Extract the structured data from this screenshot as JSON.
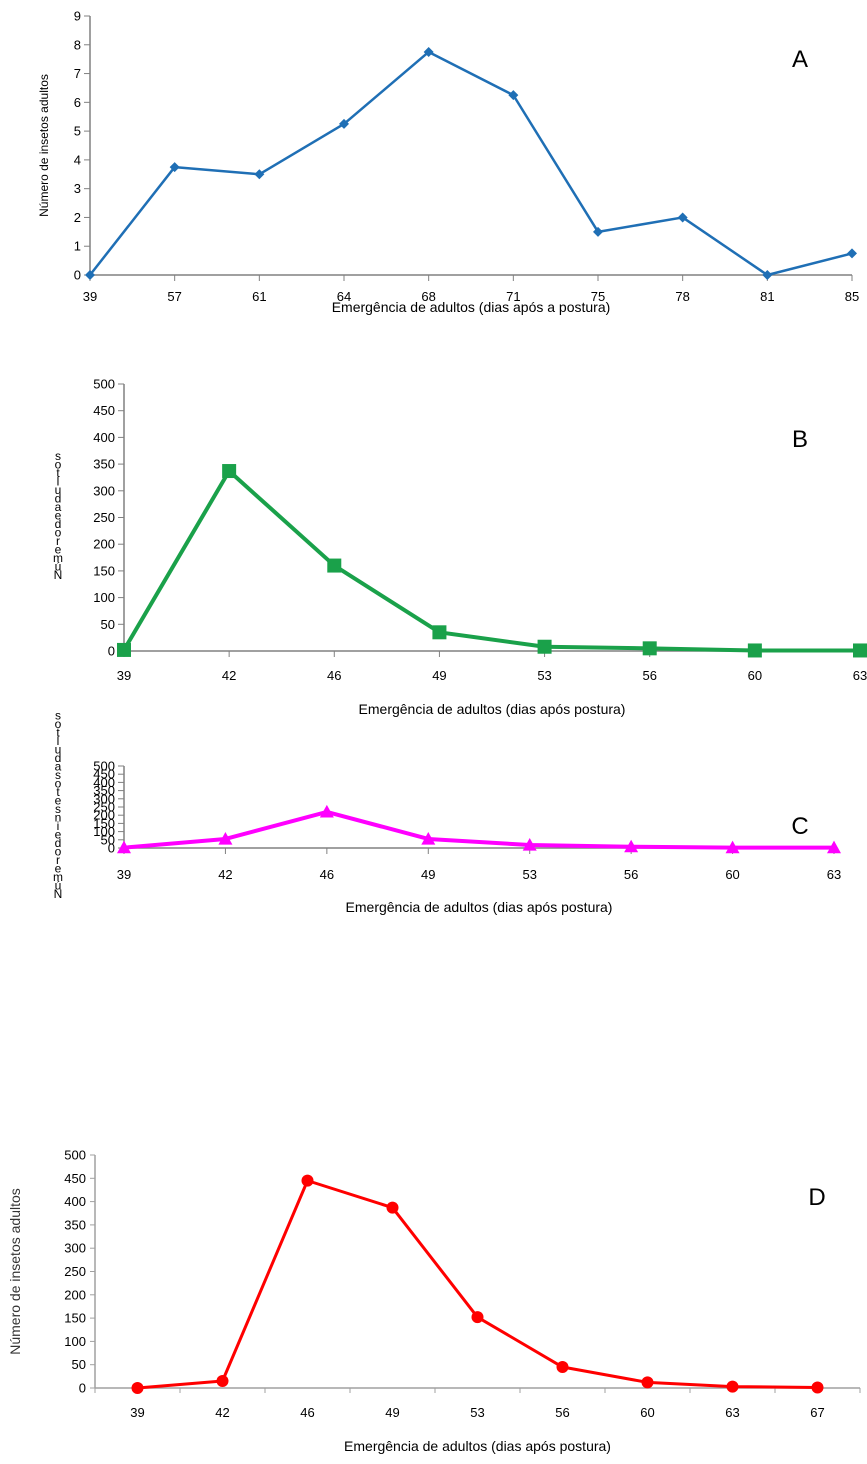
{
  "chart_data": [
    {
      "type": "line",
      "panel": "A",
      "x": [
        "39",
        "57",
        "61",
        "64",
        "68",
        "71",
        "75",
        "78",
        "81",
        "85"
      ],
      "series": [
        {
          "values": [
            0,
            3.75,
            3.5,
            5.25,
            7.75,
            6.25,
            1.5,
            2.0,
            0,
            0.75
          ],
          "color": "#1f6fb5",
          "marker": "diamond"
        }
      ],
      "xlabel": "Emergência de adultos (dias após a postura)",
      "ylabel": "Número de insetos adultos",
      "yticks": [
        "0",
        "1",
        "2",
        "3",
        "4",
        "5",
        "6",
        "7",
        "8",
        "9"
      ],
      "ylim": [
        0,
        9
      ],
      "grid": false
    },
    {
      "type": "line",
      "panel": "B",
      "x": [
        "39",
        "42",
        "46",
        "49",
        "53",
        "56",
        "60",
        "63"
      ],
      "series": [
        {
          "values": [
            2,
            337,
            160,
            35,
            8,
            5,
            1,
            1
          ],
          "color": "#1aa14a",
          "marker": "square"
        }
      ],
      "xlabel": "Emergência de adultos (dias após postura)",
      "ylabel": "Número de adultos",
      "yticks": [
        "0",
        "50",
        "100",
        "150",
        "200",
        "250",
        "300",
        "350",
        "400",
        "450",
        "500"
      ],
      "ylim": [
        0,
        500
      ],
      "grid": false
    },
    {
      "type": "line",
      "panel": "C",
      "x": [
        "39",
        "42",
        "46",
        "49",
        "53",
        "56",
        "60",
        "63"
      ],
      "series": [
        {
          "values": [
            2,
            55,
            220,
            55,
            18,
            8,
            2,
            2
          ],
          "color": "#ff00ff",
          "marker": "triangle"
        }
      ],
      "xlabel": "Emergência de adultos (dias após postura)",
      "ylabel": "Número de insetos adultos",
      "yticks": [
        "0",
        "50",
        "100",
        "150",
        "200",
        "250",
        "300",
        "350",
        "400",
        "450",
        "500"
      ],
      "ylim": [
        0,
        500
      ],
      "grid": false
    },
    {
      "type": "line",
      "panel": "D",
      "x": [
        "39",
        "42",
        "46",
        "49",
        "53",
        "56",
        "60",
        "63",
        "67"
      ],
      "series": [
        {
          "values": [
            0,
            15,
            445,
            387,
            152,
            45,
            12,
            3,
            1
          ],
          "color": "#ff0000",
          "marker": "circle"
        }
      ],
      "xlabel": "Emergência de adultos (dias após postura)",
      "ylabel": "Número de insetos adultos",
      "yticks": [
        "0",
        "50",
        "100",
        "150",
        "200",
        "250",
        "300",
        "350",
        "400",
        "450",
        "500"
      ],
      "ylim": [
        0,
        500
      ],
      "grid": false
    }
  ]
}
